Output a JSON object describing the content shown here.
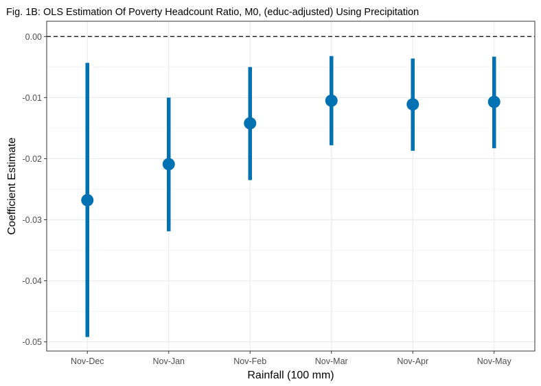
{
  "chart_data": {
    "type": "scatter",
    "title": "Fig. 1B: OLS Estimation Of Poverty Headcount Ratio, M0, (educ-adjusted) Using Precipitation",
    "xlabel": "Rainfall (100 mm)",
    "ylabel": "Coefficient Estimate",
    "categories": [
      "Nov-Dec",
      "Nov-Jan",
      "Nov-Feb",
      "Nov-Mar",
      "Nov-Apr",
      "Nov-May"
    ],
    "estimates": [
      -0.0268,
      -0.0209,
      -0.0142,
      -0.0105,
      -0.0111,
      -0.0107
    ],
    "ci_lower": [
      -0.0492,
      -0.0319,
      -0.0235,
      -0.0178,
      -0.0187,
      -0.0183
    ],
    "ci_upper": [
      -0.0043,
      -0.01,
      -0.005,
      -0.0032,
      -0.0036,
      -0.0033
    ],
    "ylim": [
      -0.0515,
      0.0025
    ],
    "yticks": [
      0.0,
      -0.01,
      -0.02,
      -0.03,
      -0.04,
      -0.05
    ],
    "ytick_labels": [
      "0.00",
      "-0.01",
      "-0.02",
      "-0.03",
      "-0.04",
      "-0.05"
    ],
    "reference_line": 0.0,
    "grid": true,
    "colors": {
      "point": "#0072B2",
      "reference_line": "#000000",
      "grid": "#ebebeb",
      "border": "#333333"
    }
  }
}
